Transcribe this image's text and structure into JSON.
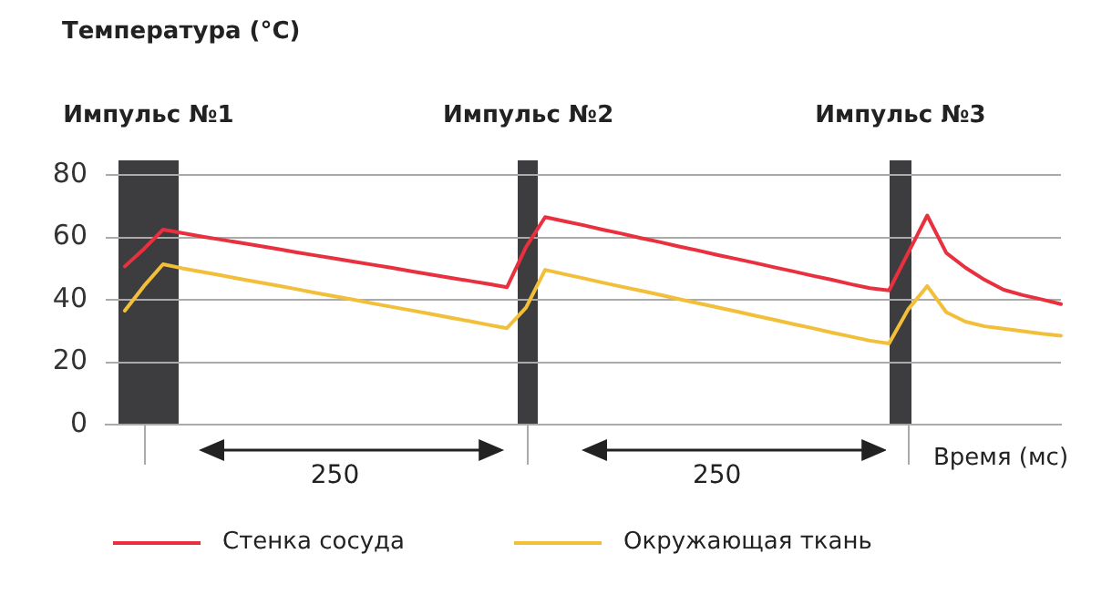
{
  "chart_data": {
    "type": "line",
    "ylabel": "Температура (°C)",
    "xlabel": "Время (мс)",
    "categories": [
      null,
      null,
      null,
      null,
      null,
      null,
      null,
      null,
      null,
      null,
      null,
      null,
      null,
      null,
      null,
      null,
      null,
      null,
      null,
      null,
      null,
      null,
      null,
      null,
      null,
      null,
      null,
      null,
      null,
      null,
      null,
      null,
      null,
      null,
      null,
      null,
      null,
      null,
      null,
      null,
      null,
      null,
      null,
      null,
      null,
      null,
      null,
      null,
      null,
      null,
      null
    ],
    "ylim": [
      0,
      80
    ],
    "yticks": [
      0,
      20,
      40,
      60,
      80
    ],
    "tick_labels": "y",
    "grid": "y",
    "legend": "bottom",
    "marker": "none",
    "line_style": "solid",
    "series": [
      {
        "name": "Стенка сосуда",
        "color": "#e8303f",
        "values": [
          null,
          50.7,
          56.3,
          62.5,
          61.4,
          60.3,
          59.3,
          58.3,
          57.3,
          56.3,
          55.2,
          54.2,
          53.2,
          52.2,
          51.2,
          50.2,
          49.1,
          48.1,
          47.1,
          46.1,
          45.1,
          44,
          56.9,
          66.5,
          65.2,
          63.9,
          62.5,
          61.2,
          59.8,
          58.5,
          57.1,
          55.8,
          54.4,
          53.1,
          51.8,
          50.4,
          49.1,
          47.7,
          46.4,
          45,
          43.7,
          43,
          55,
          67,
          55,
          50.3,
          46.4,
          43.2,
          41.5,
          40.1,
          38.6
        ]
      },
      {
        "name": "Окружающая ткань",
        "color": "#f2bf3a",
        "values": [
          null,
          36.5,
          44.4,
          51.4,
          50.1,
          49,
          47.9,
          46.7,
          45.6,
          44.5,
          43.4,
          42.2,
          41.1,
          40,
          38.8,
          37.7,
          36.6,
          35.5,
          34.3,
          33.2,
          32,
          30.9,
          37.5,
          49.6,
          48.2,
          46.9,
          45.5,
          44.2,
          42.9,
          41.6,
          40.2,
          38.9,
          37.6,
          36.3,
          34.9,
          33.6,
          32.2,
          30.9,
          29.5,
          28.2,
          26.9,
          26,
          36.9,
          44.4,
          36,
          33,
          31.5,
          30.7,
          29.9,
          29.1,
          28.5
        ]
      }
    ],
    "annotations": [
      "Импульс №1",
      "Импульс №2",
      "Импульс №3",
      "250",
      "250"
    ]
  }
}
